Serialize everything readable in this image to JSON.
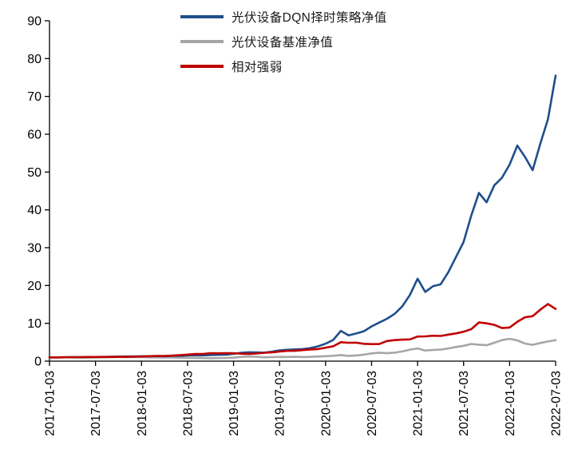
{
  "chart_data": {
    "type": "line",
    "title": "",
    "xlabel": "",
    "ylabel": "",
    "grid": false,
    "background_color": "#ffffff",
    "axis_color": "#000000",
    "tick_label_color": "#000000",
    "ylim": [
      0,
      90
    ],
    "yticks": [
      0,
      10,
      20,
      30,
      40,
      50,
      60,
      70,
      80,
      90
    ],
    "x_unit": "month",
    "x_range": [
      "2017-01",
      "2022-07"
    ],
    "x_tick_every": 6,
    "x_tick_labels": [
      "2017-01-03",
      "2017-07-03",
      "2018-01-03",
      "2018-07-03",
      "2019-01-03",
      "2019-07-03",
      "2020-01-03",
      "2020-07-03",
      "2021-01-03",
      "2021-07-03",
      "2022-01-03",
      "2022-07-03"
    ],
    "legend_position": "top-center",
    "series": [
      {
        "id": "dqn-strategy",
        "name": "光伏设备DQN择时策略净值",
        "color": "#1f4e8c",
        "values": [
          1.0,
          1.0,
          1.02,
          1.05,
          1.03,
          1.06,
          1.1,
          1.12,
          1.15,
          1.2,
          1.22,
          1.25,
          1.28,
          1.3,
          1.33,
          1.3,
          1.38,
          1.42,
          1.5,
          1.55,
          1.52,
          1.6,
          1.66,
          1.72,
          1.95,
          2.2,
          2.35,
          2.3,
          2.25,
          2.5,
          2.85,
          3.0,
          3.1,
          3.2,
          3.45,
          3.9,
          4.6,
          5.6,
          8.0,
          6.8,
          7.3,
          7.9,
          9.2,
          10.2,
          11.2,
          12.5,
          14.5,
          17.5,
          21.8,
          18.3,
          19.8,
          20.3,
          23.5,
          27.5,
          31.5,
          38.5,
          44.5,
          42.0,
          46.5,
          48.5,
          52.0,
          57.0,
          54.0,
          50.5,
          57.5,
          64.0,
          75.5
        ]
      },
      {
        "id": "benchmark",
        "name": "光伏设备基准净值",
        "color": "#a6a6a6",
        "values": [
          1.0,
          1.0,
          1.01,
          1.0,
          0.97,
          0.96,
          1.0,
          1.02,
          1.03,
          1.05,
          1.08,
          1.05,
          1.05,
          1.0,
          0.98,
          0.96,
          0.95,
          0.9,
          0.86,
          0.82,
          0.8,
          0.76,
          0.8,
          0.82,
          0.92,
          1.12,
          1.22,
          1.15,
          1.02,
          1.08,
          1.12,
          1.1,
          1.14,
          1.1,
          1.12,
          1.22,
          1.3,
          1.42,
          1.6,
          1.4,
          1.5,
          1.72,
          2.05,
          2.25,
          2.1,
          2.25,
          2.55,
          3.05,
          3.35,
          2.8,
          2.95,
          3.05,
          3.35,
          3.75,
          4.05,
          4.55,
          4.35,
          4.2,
          4.85,
          5.55,
          5.9,
          5.5,
          4.65,
          4.3,
          4.8,
          5.2,
          5.55
        ]
      },
      {
        "id": "relative-strength",
        "name": "相对强弱",
        "color": "#c00000",
        "values": [
          1.0,
          1.0,
          1.01,
          1.05,
          1.06,
          1.1,
          1.1,
          1.1,
          1.12,
          1.14,
          1.13,
          1.19,
          1.22,
          1.3,
          1.36,
          1.35,
          1.45,
          1.58,
          1.74,
          1.89,
          1.9,
          2.11,
          2.08,
          2.1,
          2.12,
          1.96,
          1.93,
          2.0,
          2.21,
          2.31,
          2.54,
          2.73,
          2.72,
          2.91,
          3.08,
          3.2,
          3.54,
          3.94,
          5.0,
          4.86,
          4.87,
          4.59,
          4.49,
          4.53,
          5.33,
          5.56,
          5.69,
          5.74,
          6.51,
          6.54,
          6.71,
          6.66,
          7.01,
          7.33,
          7.78,
          8.46,
          10.23,
          10.0,
          9.59,
          8.74,
          8.9,
          10.4,
          11.6,
          11.9,
          13.6,
          15.1,
          13.8
        ]
      }
    ]
  }
}
